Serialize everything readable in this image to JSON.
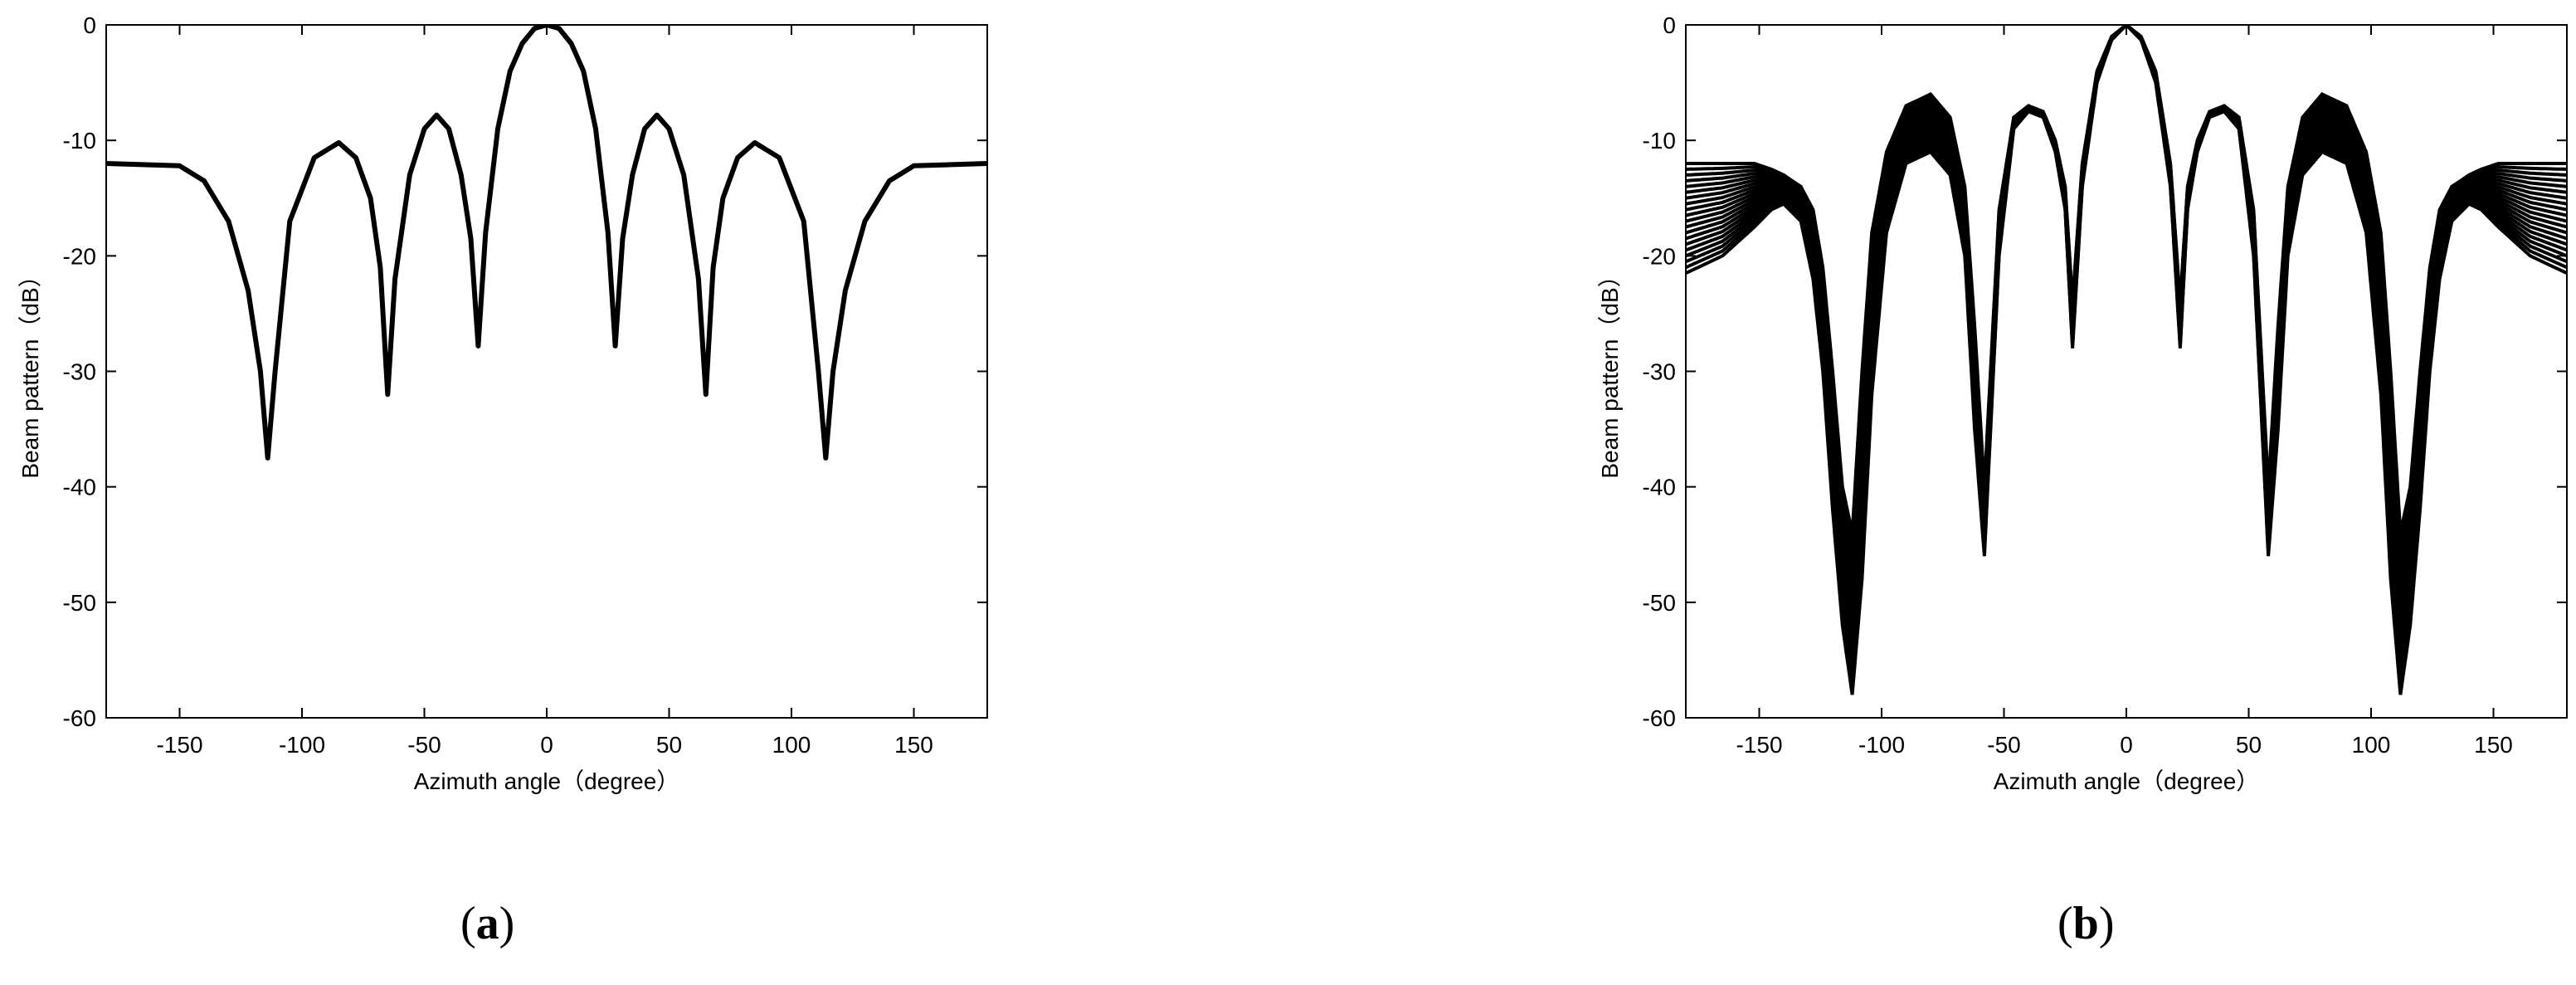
{
  "figure": {
    "panels": [
      {
        "caption_open": "(",
        "caption_letter": "a",
        "caption_close": ")"
      },
      {
        "caption_open": "(",
        "caption_letter": "b",
        "caption_close": ")"
      }
    ]
  },
  "chart_data": [
    {
      "type": "line",
      "title": "",
      "xlabel": "Azimuth angle（degree）",
      "ylabel": "Beam pattern（dB）",
      "xlim": [
        -180,
        180
      ],
      "ylim": [
        -60,
        0
      ],
      "xticks": [
        -150,
        -100,
        -50,
        0,
        50,
        100,
        150
      ],
      "yticks": [
        0,
        -10,
        -20,
        -30,
        -40,
        -50,
        -60
      ],
      "grid": false,
      "line_color": "#000000",
      "series": [
        {
          "x": [
            -180,
            -150,
            -140,
            -130,
            -122,
            -117,
            -114,
            -111,
            -105,
            -95,
            -85,
            -78,
            -72,
            -68,
            -65,
            -62,
            -56,
            -50,
            -45,
            -40,
            -35,
            -31,
            -28,
            -25,
            -20,
            -15,
            -10,
            -5,
            0,
            5,
            10,
            15,
            20,
            25,
            28,
            31,
            35,
            40,
            45,
            50,
            56,
            62,
            65,
            68,
            72,
            78,
            85,
            95,
            105,
            111,
            114,
            117,
            122,
            130,
            140,
            150,
            180
          ],
          "y": [
            -12,
            -12.2,
            -13.5,
            -17,
            -23,
            -30,
            -37.5,
            -30,
            -17,
            -11.5,
            -10.2,
            -11.5,
            -15,
            -21,
            -32,
            -22,
            -13,
            -9,
            -7.8,
            -9,
            -13,
            -18.5,
            -27.8,
            -18,
            -9,
            -4,
            -1.6,
            -0.3,
            0,
            -0.3,
            -1.6,
            -4,
            -9,
            -18,
            -27.8,
            -18.5,
            -13,
            -9,
            -7.8,
            -9,
            -13,
            -22,
            -32,
            -21,
            -15,
            -11.5,
            -10.2,
            -11.5,
            -17,
            -30,
            -37.5,
            -30,
            -23,
            -17,
            -13.5,
            -12.2,
            -12
          ]
        }
      ]
    },
    {
      "type": "line",
      "title": "",
      "xlabel": "Azimuth angle（degree）",
      "ylabel": "Beam pattern（dB）",
      "xlim": [
        -180,
        180
      ],
      "ylim": [
        -60,
        0
      ],
      "xticks": [
        -150,
        -100,
        -50,
        0,
        50,
        100,
        150
      ],
      "yticks": [
        0,
        -10,
        -20,
        -30,
        -40,
        -50,
        -60
      ],
      "grid": false,
      "line_color": "#000000",
      "series_count": 20,
      "series": [
        {
          "x": [
            -180,
            -165,
            -152,
            -145,
            -140,
            -133,
            -128,
            -124,
            -120,
            -116,
            -112,
            -108,
            -104,
            -98,
            -90,
            -80,
            -72,
            -66,
            -62,
            -58,
            -52,
            -46,
            -40,
            -34,
            -29,
            -25,
            -22,
            -18,
            -12,
            -6,
            0,
            6,
            12,
            18,
            22,
            25,
            29,
            34,
            40,
            46,
            52,
            58,
            62,
            66,
            72,
            80,
            90,
            98,
            104,
            108,
            112,
            116,
            120,
            124,
            128,
            133,
            140,
            145,
            152,
            165,
            180
          ],
          "y": [
            -21.5,
            -20,
            -17.5,
            -16,
            -15.5,
            -17,
            -22,
            -30,
            -42,
            -52,
            -58,
            -48,
            -32,
            -18,
            -12,
            -11,
            -13,
            -20,
            -35,
            -46,
            -20,
            -9,
            -7.5,
            -8,
            -11,
            -16,
            -28,
            -14,
            -5,
            -1.3,
            0,
            -1.3,
            -5,
            -14,
            -28,
            -16,
            -11,
            -8,
            -7.5,
            -9,
            -20,
            -46,
            -35,
            -20,
            -13,
            -11,
            -12,
            -18,
            -32,
            -48,
            -58,
            -52,
            -42,
            -30,
            -22,
            -17,
            -15.5,
            -16,
            -17.5,
            -20,
            -21.5
          ]
        },
        {
          "x": [
            -180,
            -165,
            -152,
            -145,
            -140,
            -133,
            -128,
            -124,
            -120,
            -116,
            -112,
            -108,
            -104,
            -98,
            -90,
            -80,
            -72,
            -66,
            -62,
            -58,
            -52,
            -46,
            -40,
            -34,
            -29,
            -25,
            -22,
            -18,
            -12,
            -6,
            0,
            6,
            12,
            18,
            22,
            25,
            29,
            34,
            40,
            46,
            52,
            58,
            62,
            66,
            72,
            80,
            90,
            98,
            104,
            108,
            112,
            116,
            120,
            124,
            128,
            133,
            140,
            145,
            152,
            165,
            180
          ],
          "y": [
            -12,
            -12,
            -12,
            -12.5,
            -13,
            -14,
            -16,
            -21,
            -30,
            -40,
            -44,
            -30,
            -18,
            -11,
            -7,
            -6,
            -8,
            -14,
            -26,
            -40,
            -16,
            -8,
            -7,
            -7.5,
            -10,
            -14,
            -24,
            -12,
            -4,
            -1,
            0,
            -1,
            -4,
            -12,
            -24,
            -14,
            -10,
            -7.5,
            -7,
            -8,
            -16,
            -40,
            -26,
            -14,
            -8,
            -6,
            -7,
            -11,
            -18,
            -30,
            -44,
            -40,
            -30,
            -21,
            -16,
            -14,
            -13,
            -12.5,
            -12,
            -12,
            -12
          ]
        }
      ]
    }
  ]
}
